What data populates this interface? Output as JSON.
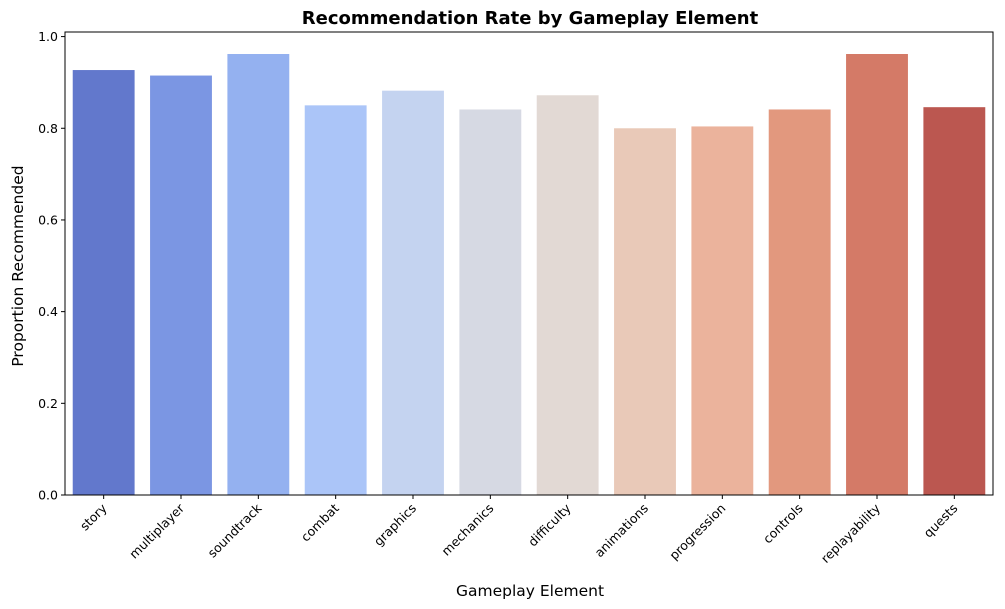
{
  "chart_data": {
    "type": "bar",
    "title": "Recommendation Rate by Gameplay Element",
    "xlabel": "Gameplay Element",
    "ylabel": "Proportion Recommended",
    "categories": [
      "story",
      "multiplayer",
      "soundtrack",
      "combat",
      "graphics",
      "mechanics",
      "difficulty",
      "animations",
      "progression",
      "controls",
      "replayability",
      "quests"
    ],
    "values": [
      0.927,
      0.915,
      0.962,
      0.85,
      0.882,
      0.841,
      0.872,
      0.8,
      0.804,
      0.841,
      0.962,
      0.846
    ],
    "colors": [
      "#6278cc",
      "#7b96e3",
      "#94b1f0",
      "#abc5f8",
      "#c4d3f0",
      "#d6d9e3",
      "#e2d9d4",
      "#e9c9b8",
      "#ebb39c",
      "#e2987e",
      "#d47a67",
      "#bb5750"
    ],
    "ylim": [
      0,
      1.01
    ],
    "yticks": [
      0.0,
      0.2,
      0.4,
      0.6,
      0.8,
      1.0
    ],
    "ytick_labels": [
      "0.0",
      "0.2",
      "0.4",
      "0.6",
      "0.8",
      "1.0"
    ],
    "grid": false,
    "legend": "none"
  }
}
